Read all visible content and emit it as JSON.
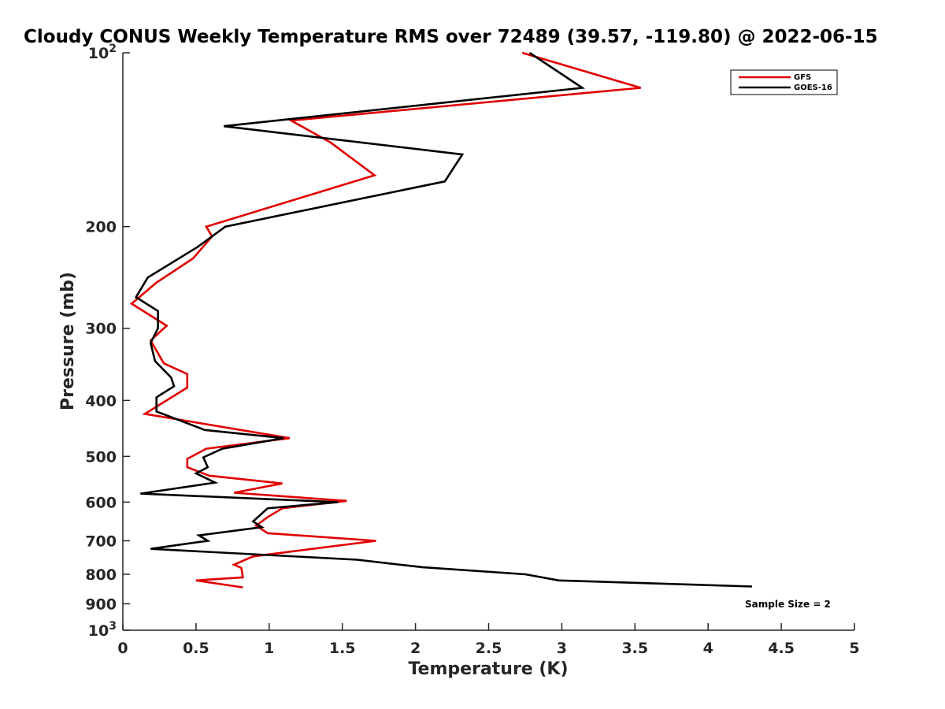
{
  "chart_data": {
    "type": "line",
    "title": "Cloudy CONUS Weekly Temperature RMS over 72489 (39.57, -119.80) @ 2022-06-15",
    "xlabel": "Temperature (K)",
    "ylabel": "Pressure (mb)",
    "xlim": [
      0,
      5
    ],
    "ylim": [
      100,
      1000
    ],
    "y_scale": "log",
    "y_reversed": true,
    "x_ticks": [
      "0",
      "0.5",
      "1",
      "1.5",
      "2",
      "2.5",
      "3",
      "3.5",
      "4",
      "4.5",
      "5"
    ],
    "y_ticks": [
      {
        "value": 100,
        "label": "10",
        "sup": "2"
      },
      {
        "value": 200,
        "label": "200",
        "sup": ""
      },
      {
        "value": 300,
        "label": "300",
        "sup": ""
      },
      {
        "value": 400,
        "label": "400",
        "sup": ""
      },
      {
        "value": 500,
        "label": "500",
        "sup": ""
      },
      {
        "value": 600,
        "label": "600",
        "sup": ""
      },
      {
        "value": 700,
        "label": "700",
        "sup": ""
      },
      {
        "value": 800,
        "label": "800",
        "sup": ""
      },
      {
        "value": 900,
        "label": "900",
        "sup": ""
      },
      {
        "value": 1000,
        "label": "10",
        "sup": "3"
      }
    ],
    "grid": false,
    "legend_position": "top-right",
    "annotation": "Sample Size = 2",
    "series": [
      {
        "name": "GFS",
        "color": "#e00000",
        "points": [
          [
            2.73,
            100
          ],
          [
            3.54,
            115
          ],
          [
            1.15,
            131
          ],
          [
            1.42,
            143
          ],
          [
            1.72,
            163
          ],
          [
            0.57,
            200
          ],
          [
            0.61,
            208
          ],
          [
            0.48,
            227
          ],
          [
            0.23,
            250
          ],
          [
            0.06,
            272
          ],
          [
            0.3,
            297
          ],
          [
            0.19,
            315
          ],
          [
            0.28,
            345
          ],
          [
            0.44,
            360
          ],
          [
            0.44,
            380
          ],
          [
            0.15,
            422
          ],
          [
            1.14,
            465
          ],
          [
            0.57,
            485
          ],
          [
            0.44,
            505
          ],
          [
            0.44,
            522
          ],
          [
            0.59,
            540
          ],
          [
            1.09,
            557
          ],
          [
            0.76,
            578
          ],
          [
            1.53,
            597
          ],
          [
            1.09,
            615
          ],
          [
            0.99,
            637
          ],
          [
            0.91,
            659
          ],
          [
            0.99,
            679
          ],
          [
            1.73,
            700
          ],
          [
            0.89,
            745
          ],
          [
            0.76,
            770
          ],
          [
            0.81,
            780
          ],
          [
            0.82,
            810
          ],
          [
            0.5,
            820
          ],
          [
            0.82,
            843
          ]
        ]
      },
      {
        "name": "GOES-16",
        "color": "#000000",
        "points": [
          [
            2.78,
            100
          ],
          [
            3.14,
            115
          ],
          [
            0.69,
            134
          ],
          [
            2.32,
            150
          ],
          [
            2.2,
            167
          ],
          [
            0.7,
            200
          ],
          [
            0.51,
            217
          ],
          [
            0.17,
            245
          ],
          [
            0.09,
            265
          ],
          [
            0.24,
            280
          ],
          [
            0.24,
            300
          ],
          [
            0.19,
            318
          ],
          [
            0.22,
            342
          ],
          [
            0.33,
            365
          ],
          [
            0.35,
            378
          ],
          [
            0.23,
            395
          ],
          [
            0.23,
            418
          ],
          [
            0.56,
            450
          ],
          [
            1.1,
            465
          ],
          [
            0.68,
            485
          ],
          [
            0.55,
            502
          ],
          [
            0.58,
            522
          ],
          [
            0.5,
            535
          ],
          [
            0.63,
            555
          ],
          [
            0.12,
            580
          ],
          [
            1.47,
            600
          ],
          [
            0.99,
            615
          ],
          [
            0.89,
            648
          ],
          [
            0.95,
            663
          ],
          [
            0.52,
            685
          ],
          [
            0.58,
            700
          ],
          [
            0.19,
            723
          ],
          [
            1.6,
            755
          ],
          [
            2.05,
            778
          ],
          [
            2.75,
            800
          ],
          [
            2.98,
            820
          ],
          [
            4.3,
            840
          ]
        ]
      }
    ]
  }
}
